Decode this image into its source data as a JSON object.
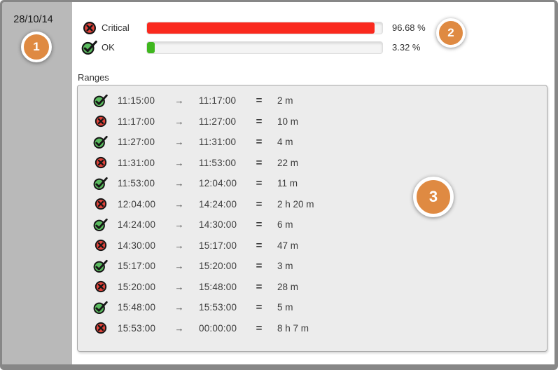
{
  "sidebar": {
    "date": "28/10/14"
  },
  "callouts": [
    {
      "label": "1"
    },
    {
      "label": "2"
    },
    {
      "label": "3"
    }
  ],
  "summary": {
    "rows": [
      {
        "status": "critical",
        "label": "Critical",
        "percent": 96.68,
        "percent_label": "96.68 %",
        "color": "#fa291e"
      },
      {
        "status": "ok",
        "label": "OK",
        "percent": 3.32,
        "percent_label": "3.32 %",
        "color": "#3fb71e"
      }
    ]
  },
  "ranges": {
    "title": "Ranges",
    "arrow_glyph": "→",
    "equals_glyph": "=",
    "rows": [
      {
        "status": "ok",
        "start": "11:15:00",
        "end": "11:17:00",
        "duration": "2 m"
      },
      {
        "status": "critical",
        "start": "11:17:00",
        "end": "11:27:00",
        "duration": "10 m"
      },
      {
        "status": "ok",
        "start": "11:27:00",
        "end": "11:31:00",
        "duration": "4 m"
      },
      {
        "status": "critical",
        "start": "11:31:00",
        "end": "11:53:00",
        "duration": "22 m"
      },
      {
        "status": "ok",
        "start": "11:53:00",
        "end": "12:04:00",
        "duration": "11 m"
      },
      {
        "status": "critical",
        "start": "12:04:00",
        "end": "14:24:00",
        "duration": "2 h 20 m"
      },
      {
        "status": "ok",
        "start": "14:24:00",
        "end": "14:30:00",
        "duration": "6 m"
      },
      {
        "status": "critical",
        "start": "14:30:00",
        "end": "15:17:00",
        "duration": "47 m"
      },
      {
        "status": "ok",
        "start": "15:17:00",
        "end": "15:20:00",
        "duration": "3 m"
      },
      {
        "status": "critical",
        "start": "15:20:00",
        "end": "15:48:00",
        "duration": "28 m"
      },
      {
        "status": "ok",
        "start": "15:48:00",
        "end": "15:53:00",
        "duration": "5 m"
      },
      {
        "status": "critical",
        "start": "15:53:00",
        "end": "00:00:00",
        "duration": "8 h 7 m"
      }
    ]
  },
  "colors": {
    "accent_orange": "#df8a42",
    "critical_red": "#fa291e",
    "ok_green": "#3fb71e",
    "icon_red": "#e2433a",
    "icon_green": "#5bbb5f",
    "sidebar_gray": "#b9b9b9",
    "panel_gray": "#ececec"
  }
}
